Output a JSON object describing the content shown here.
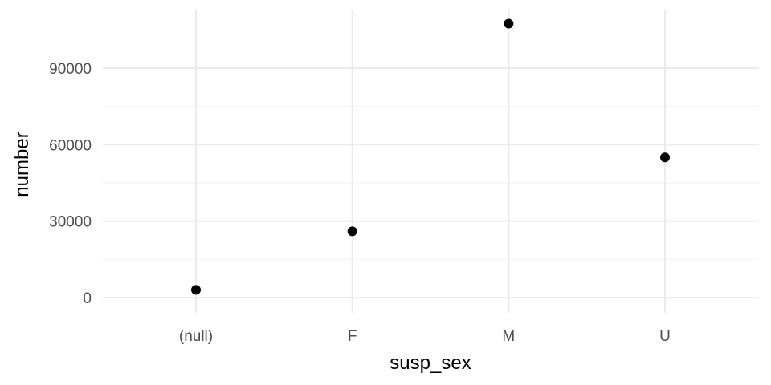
{
  "chart_data": {
    "type": "scatter",
    "title": "",
    "xlabel": "susp_sex",
    "ylabel": "number",
    "categories": [
      "(null)",
      "F",
      "M",
      "U"
    ],
    "values": [
      3000,
      26000,
      107500,
      55000
    ],
    "ylim": [
      -6000,
      113000
    ],
    "yticks": [
      0,
      30000,
      60000,
      90000
    ],
    "y_minor_ticks": [
      15000,
      45000,
      75000,
      105000
    ],
    "grid": true,
    "legend": "none",
    "colors": {
      "background": "#ffffff",
      "grid_major": "#ebebeb",
      "grid_minor": "#f2f2f2",
      "point": "#000000",
      "tick_text": "#4d4d4d",
      "axis_title": "#000000"
    }
  }
}
